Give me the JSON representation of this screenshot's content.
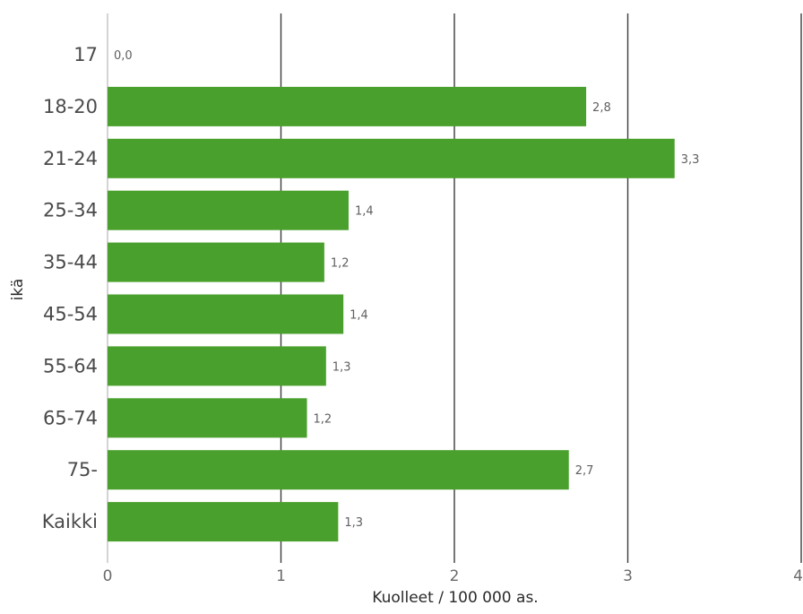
{
  "chart_data": {
    "type": "bar",
    "orientation": "horizontal",
    "categories": [
      "17",
      "18-20",
      "21-24",
      "25-34",
      "35-44",
      "45-54",
      "55-64",
      "65-74",
      "75-",
      "Kaikki"
    ],
    "values": [
      0.0,
      2.76,
      3.27,
      1.39,
      1.25,
      1.36,
      1.26,
      1.15,
      2.66,
      1.33
    ],
    "data_labels": [
      "0,0",
      "2,8",
      "3,3",
      "1,4",
      "1,2",
      "1,4",
      "1,3",
      "1,2",
      "2,7",
      "1,3"
    ],
    "xlabel": "Kuolleet / 100 000 as.",
    "ylabel": "ikä",
    "xlim": [
      0,
      4
    ],
    "xticks": [
      "0",
      "1",
      "2",
      "3",
      "4"
    ],
    "grid": "vertical",
    "bar_color": "#4aa02c",
    "legend": "none"
  }
}
